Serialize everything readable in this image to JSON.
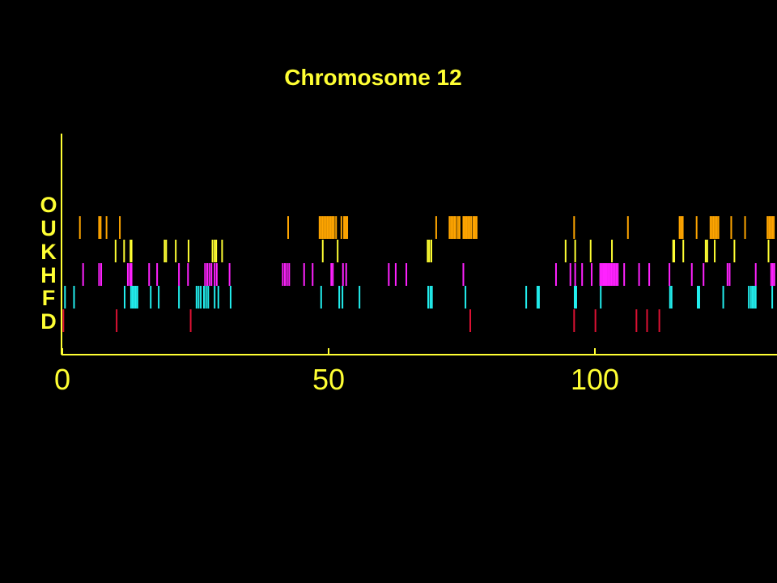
{
  "chart_data": {
    "type": "event-raster",
    "title": "Chromosome 12",
    "xlabel": "",
    "ylabel": "",
    "xlim": [
      0,
      134
    ],
    "x_ticks": [
      "0",
      "50",
      "100"
    ],
    "grid": false,
    "colors": {
      "background": "#000000",
      "axis": "#ffff33",
      "title": "#ffff33",
      "row_labels": "#ffff33"
    },
    "rows": [
      {
        "label": "O",
        "color": "#ffa500",
        "values": []
      },
      {
        "label": "U",
        "color": "#ffa500",
        "values": [
          3.3,
          6.9,
          7.2,
          8.3,
          10.8,
          42.4,
          48.3,
          48.6,
          48.9,
          49.2,
          49.5,
          49.8,
          50.1,
          50.4,
          50.7,
          51.0,
          51.4,
          52.4,
          52.9,
          53.2,
          53.5,
          70.2,
          72.7,
          73.0,
          73.3,
          73.6,
          73.9,
          74.3,
          74.6,
          75.3,
          75.6,
          75.9,
          76.2,
          76.5,
          76.8,
          77.2,
          77.5,
          77.8,
          96.1,
          106.2,
          115.9,
          116.2,
          116.5,
          119.1,
          121.7,
          122.0,
          122.3,
          122.6,
          122.9,
          123.2,
          125.6,
          128.2,
          132.4,
          132.7,
          133.0,
          133.3,
          133.6
        ]
      },
      {
        "label": "K",
        "color": "#ffff33",
        "values": [
          10.0,
          11.6,
          12.8,
          13.0,
          19.2,
          19.5,
          21.3,
          23.7,
          28.2,
          28.6,
          28.9,
          30.0,
          48.9,
          51.7,
          68.6,
          68.9,
          69.3,
          94.5,
          96.3,
          99.2,
          103.2,
          114.7,
          114.9,
          116.6,
          120.8,
          121.1,
          122.5,
          126.2,
          132.6
        ]
      },
      {
        "label": "H",
        "color": "#ff22ff",
        "values": [
          3.9,
          6.9,
          7.3,
          12.3,
          12.7,
          13.0,
          16.3,
          17.8,
          21.9,
          23.6,
          26.8,
          27.2,
          27.6,
          28.0,
          28.6,
          29.0,
          31.4,
          41.4,
          41.8,
          42.2,
          42.6,
          45.4,
          47.0,
          50.5,
          50.8,
          52.7,
          53.3,
          61.3,
          62.6,
          64.6,
          75.3,
          92.7,
          95.4,
          96.3,
          97.6,
          99.4,
          101.0,
          101.3,
          101.6,
          101.9,
          102.2,
          102.5,
          102.8,
          103.1,
          103.4,
          103.7,
          104.0,
          104.3,
          105.5,
          108.3,
          110.2,
          114.0,
          118.2,
          120.4,
          124.9,
          125.3,
          130.2,
          133.1,
          133.4,
          133.7
        ]
      },
      {
        "label": "F",
        "color": "#22eeee",
        "values": [
          0.5,
          2.2,
          11.7,
          12.9,
          13.2,
          13.5,
          13.8,
          14.1,
          16.6,
          18.1,
          21.9,
          25.2,
          25.6,
          26.0,
          26.6,
          27.0,
          27.4,
          28.6,
          29.3,
          31.6,
          48.6,
          52.0,
          52.6,
          55.8,
          68.7,
          69.1,
          69.4,
          75.7,
          87.1,
          89.2,
          89.5,
          96.2,
          96.5,
          101.1,
          114.1,
          114.4,
          119.3,
          119.6,
          124.1,
          128.9,
          129.3,
          129.6,
          129.9,
          130.2,
          133.3
        ]
      },
      {
        "label": "D",
        "color": "#dd1133",
        "values": [
          0.2,
          10.2,
          24.1,
          76.6,
          96.1,
          100.1,
          107.8,
          109.8,
          112.1
        ]
      }
    ]
  }
}
